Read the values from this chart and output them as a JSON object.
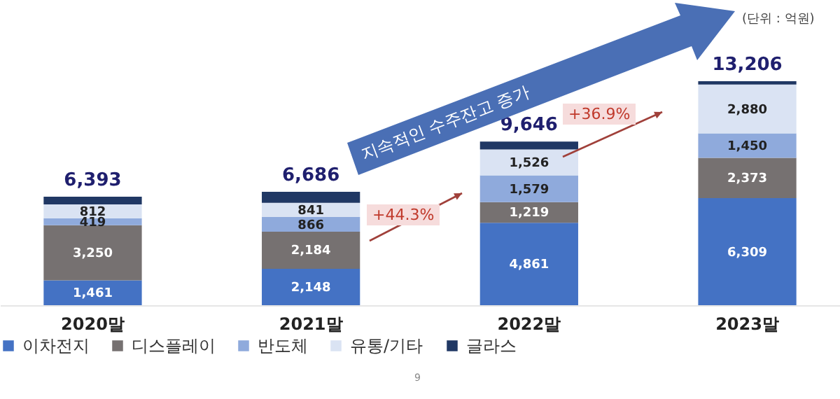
{
  "chart_data": {
    "type": "bar",
    "stacked": true,
    "categories": [
      "2020말",
      "2021말",
      "2022말",
      "2023말"
    ],
    "series": [
      {
        "name": "이차전지",
        "color": "#4472c4",
        "values": [
          1461,
          2148,
          4861,
          6309
        ],
        "value_labels": [
          "1,461",
          "2,148",
          "4,861",
          "6,309"
        ]
      },
      {
        "name": "디스플레이",
        "color": "#767171",
        "values": [
          3250,
          2184,
          1219,
          2373
        ],
        "value_labels": [
          "3,250",
          "2,184",
          "1,219",
          "2,373"
        ]
      },
      {
        "name": "반도체",
        "color": "#8faadc",
        "values": [
          419,
          866,
          1579,
          1450
        ],
        "value_labels": [
          "419",
          "866",
          "1,579",
          "1,450"
        ]
      },
      {
        "name": "유통/기타",
        "color": "#dae3f3",
        "values": [
          812,
          841,
          1526,
          2880
        ],
        "value_labels": [
          "812",
          "841",
          "1,526",
          "2,880"
        ]
      },
      {
        "name": "글라스",
        "color": "#203864",
        "values": [
          451,
          647,
          461,
          194
        ],
        "value_labels": [
          null,
          null,
          null,
          null
        ]
      }
    ],
    "totals": [
      "6,393",
      "6,686",
      "9,646",
      "13,206"
    ],
    "legend": "bottom",
    "annotations": [
      "지속적인 수주잔고 증가",
      "+44.3%",
      "+36.9%",
      "(단위 : 억원)",
      "9"
    ]
  }
}
